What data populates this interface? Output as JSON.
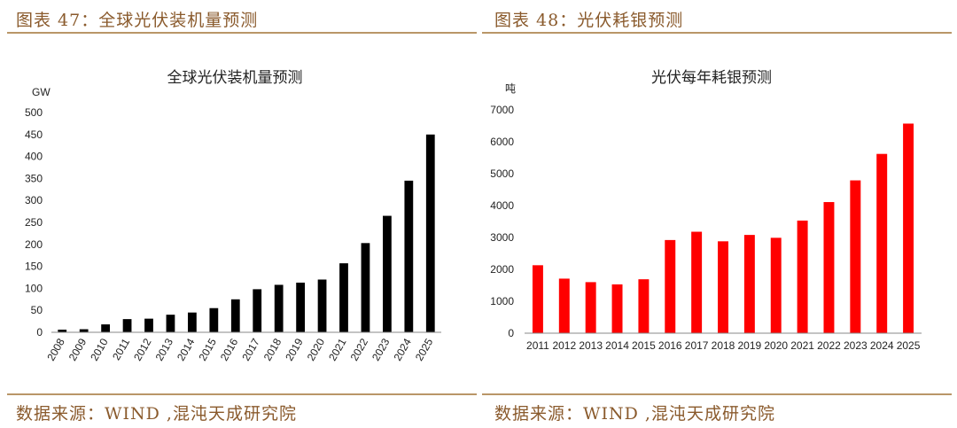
{
  "colors": {
    "accent": "#8a5a2c",
    "rule": "#b99668",
    "bar_left": "#000000",
    "bar_right": "#ff0000"
  },
  "left": {
    "figure_title": "图表 47：全球光伏装机量预测",
    "source": "数据来源：WIND ,混沌天成研究院",
    "chart_data": {
      "type": "bar",
      "title": "全球光伏装机量预测",
      "ylabel": "GW",
      "xlabel": "",
      "ylim": [
        0,
        500
      ],
      "yticks": [
        0,
        50,
        100,
        150,
        200,
        250,
        300,
        350,
        400,
        450,
        500
      ],
      "categories": [
        "2008",
        "2009",
        "2010",
        "2011",
        "2012",
        "2013",
        "2014",
        "2015",
        "2016",
        "2017",
        "2018",
        "2019",
        "2020",
        "2021",
        "2022",
        "2023",
        "2024",
        "2025"
      ],
      "values": [
        6,
        7,
        18,
        30,
        31,
        40,
        45,
        55,
        75,
        98,
        108,
        113,
        120,
        157,
        203,
        265,
        345,
        450
      ],
      "grid": false,
      "tick_rotation": "rotated"
    }
  },
  "right": {
    "figure_title": "图表 48：光伏耗银预测",
    "source": "数据来源：WIND ,混沌天成研究院",
    "chart_data": {
      "type": "bar",
      "title": "光伏每年耗银预测",
      "ylabel": "吨",
      "xlabel": "",
      "ylim": [
        0,
        7000
      ],
      "yticks": [
        0,
        1000,
        2000,
        3000,
        4000,
        5000,
        6000,
        7000
      ],
      "categories": [
        "2011",
        "2012",
        "2013",
        "2014",
        "2015",
        "2016",
        "2017",
        "2018",
        "2019",
        "2020",
        "2021",
        "2022",
        "2023",
        "2024",
        "2025"
      ],
      "values": [
        2130,
        1710,
        1600,
        1530,
        1690,
        2920,
        3180,
        2880,
        3080,
        2990,
        3530,
        4110,
        4790,
        5620,
        6570
      ],
      "grid": false,
      "tick_rotation": "horizontal"
    }
  }
}
